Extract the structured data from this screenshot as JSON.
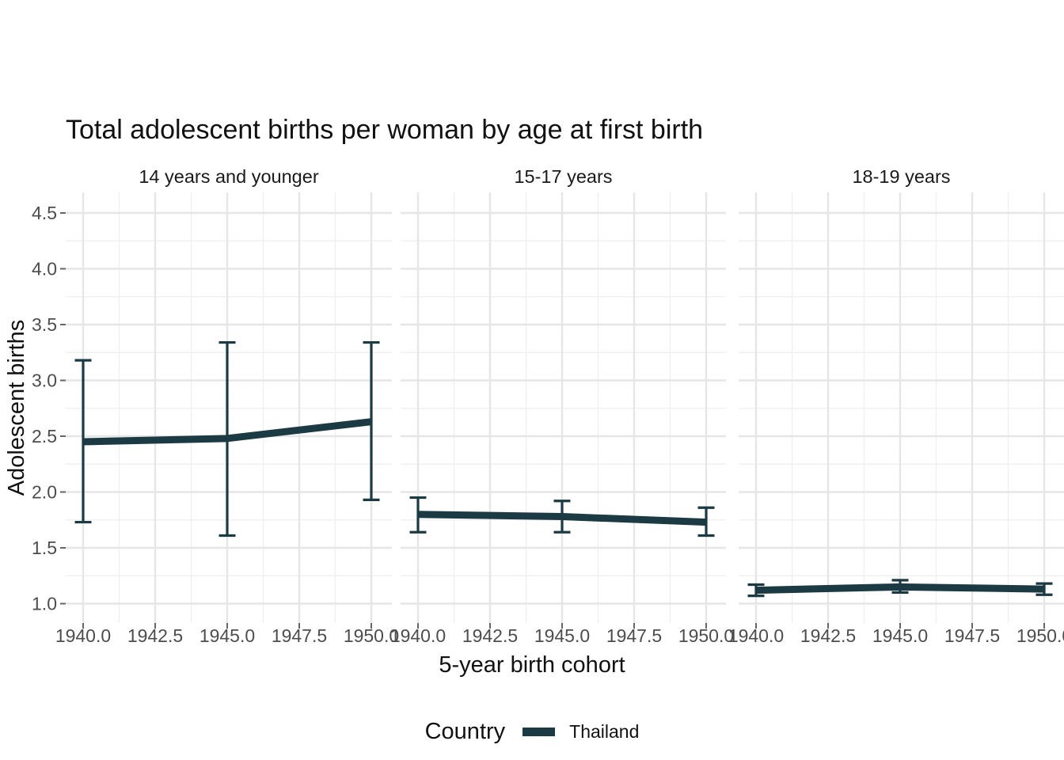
{
  "chart_data": {
    "type": "line",
    "title": "Total adolescent births per woman by age at first birth",
    "xlabel": "5-year birth cohort",
    "ylabel": "Adolescent births",
    "facets": [
      {
        "label": "14 years and younger",
        "x": [
          1940,
          1945,
          1950
        ],
        "y": [
          2.45,
          2.48,
          2.63
        ],
        "ymin": [
          1.73,
          1.61,
          1.93
        ],
        "ymax": [
          3.18,
          3.34,
          3.34
        ]
      },
      {
        "label": "15-17 years",
        "x": [
          1940,
          1945,
          1950
        ],
        "y": [
          1.8,
          1.78,
          1.73
        ],
        "ymin": [
          1.64,
          1.64,
          1.61
        ],
        "ymax": [
          1.95,
          1.92,
          1.86
        ]
      },
      {
        "label": "18-19 years",
        "x": [
          1940,
          1945,
          1950
        ],
        "y": [
          1.12,
          1.15,
          1.13
        ],
        "ymin": [
          1.07,
          1.1,
          1.08
        ],
        "ymax": [
          1.17,
          1.21,
          1.18
        ]
      }
    ],
    "x_tick_values": [
      1940,
      1942.5,
      1945,
      1947.5,
      1950
    ],
    "x_tick_labels": [
      "1940.0",
      "1942.5",
      "1945.0",
      "1947.5",
      "1950.0"
    ],
    "y_tick_values": [
      1.0,
      1.5,
      2.0,
      2.5,
      3.0,
      3.5,
      4.0,
      4.5
    ],
    "y_tick_labels": [
      "1.0",
      "1.5",
      "2.0",
      "2.5",
      "3.0",
      "3.5",
      "4.0",
      "4.5"
    ],
    "ylim": [
      0.83,
      4.68
    ],
    "grid": true,
    "legend": {
      "title": "Country",
      "position": "bottom",
      "entries": [
        {
          "label": "Thailand",
          "color": "#1c3a44"
        }
      ]
    },
    "series_color": "#1c3a44"
  },
  "colors": {
    "series": "#1c3a44",
    "grid_major": "#e6e6e6",
    "grid_minor": "#f0f0f0",
    "tick_text": "#4d4d4d",
    "tick_mark": "#666666",
    "text": "#1a1a1a"
  }
}
